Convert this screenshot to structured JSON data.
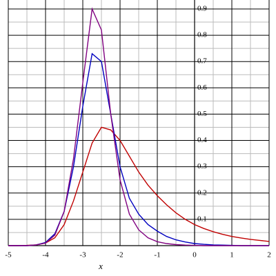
{
  "chart_data": {
    "type": "line",
    "x_label": "x",
    "x": [
      -5,
      -4.75,
      -4.5,
      -4.25,
      -4,
      -3.75,
      -3.5,
      -3.25,
      -3,
      -2.75,
      -2.5,
      -2.25,
      -2,
      -1.75,
      -1.5,
      -1.25,
      -1,
      -0.75,
      -0.5,
      -0.25,
      0,
      0.25,
      0.5,
      0.75,
      1,
      1.25,
      1.5,
      1.75,
      2
    ],
    "series": [
      {
        "color": "#c00000",
        "values": [
          0,
          0,
          0.001,
          0.003,
          0.01,
          0.03,
          0.08,
          0.17,
          0.28,
          0.39,
          0.45,
          0.44,
          0.4,
          0.34,
          0.28,
          0.23,
          0.19,
          0.155,
          0.125,
          0.1,
          0.08,
          0.065,
          0.053,
          0.043,
          0.035,
          0.029,
          0.024,
          0.02,
          0.016
        ]
      },
      {
        "color": "#0000c0",
        "values": [
          0,
          0,
          0,
          0.003,
          0.012,
          0.045,
          0.13,
          0.3,
          0.53,
          0.73,
          0.7,
          0.5,
          0.3,
          0.18,
          0.12,
          0.08,
          0.055,
          0.035,
          0.022,
          0.014,
          0.008,
          0.005,
          0.003,
          0.002,
          0.001,
          0,
          0,
          0,
          0
        ]
      },
      {
        "color": "#800080",
        "values": [
          0,
          0,
          0,
          0.003,
          0.01,
          0.04,
          0.13,
          0.33,
          0.62,
          0.9,
          0.82,
          0.5,
          0.25,
          0.12,
          0.06,
          0.03,
          0.015,
          0.008,
          0.004,
          0.002,
          0.001,
          0,
          0,
          0,
          0,
          0,
          0,
          0,
          0
        ]
      }
    ],
    "xlim": [
      -5,
      2
    ],
    "xticks": [
      -5,
      -4,
      -3,
      -2,
      -1,
      0,
      1,
      2
    ],
    "ylim": [
      0,
      0.934
    ],
    "yticks": [
      0.1,
      0.2,
      0.3,
      0.4,
      0.5,
      0.6,
      0.7,
      0.8,
      0.9
    ],
    "grid": true
  }
}
